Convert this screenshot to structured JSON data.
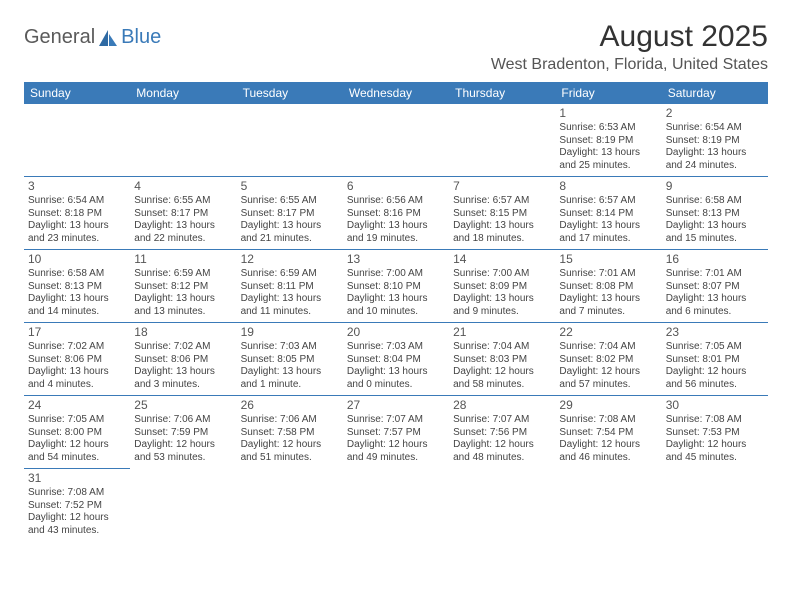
{
  "logo": {
    "part1": "General",
    "part2": "Blue"
  },
  "title": "August 2025",
  "location": "West Bradenton, Florida, United States",
  "colors": {
    "header_bg": "#3a7ab8",
    "header_text": "#ffffff",
    "border": "#3a7ab8",
    "text": "#444444",
    "page_bg": "#ffffff"
  },
  "day_headers": [
    "Sunday",
    "Monday",
    "Tuesday",
    "Wednesday",
    "Thursday",
    "Friday",
    "Saturday"
  ],
  "weeks": [
    [
      null,
      null,
      null,
      null,
      null,
      {
        "n": "1",
        "sunrise": "Sunrise: 6:53 AM",
        "sunset": "Sunset: 8:19 PM",
        "day": "Daylight: 13 hours and 25 minutes."
      },
      {
        "n": "2",
        "sunrise": "Sunrise: 6:54 AM",
        "sunset": "Sunset: 8:19 PM",
        "day": "Daylight: 13 hours and 24 minutes."
      }
    ],
    [
      {
        "n": "3",
        "sunrise": "Sunrise: 6:54 AM",
        "sunset": "Sunset: 8:18 PM",
        "day": "Daylight: 13 hours and 23 minutes."
      },
      {
        "n": "4",
        "sunrise": "Sunrise: 6:55 AM",
        "sunset": "Sunset: 8:17 PM",
        "day": "Daylight: 13 hours and 22 minutes."
      },
      {
        "n": "5",
        "sunrise": "Sunrise: 6:55 AM",
        "sunset": "Sunset: 8:17 PM",
        "day": "Daylight: 13 hours and 21 minutes."
      },
      {
        "n": "6",
        "sunrise": "Sunrise: 6:56 AM",
        "sunset": "Sunset: 8:16 PM",
        "day": "Daylight: 13 hours and 19 minutes."
      },
      {
        "n": "7",
        "sunrise": "Sunrise: 6:57 AM",
        "sunset": "Sunset: 8:15 PM",
        "day": "Daylight: 13 hours and 18 minutes."
      },
      {
        "n": "8",
        "sunrise": "Sunrise: 6:57 AM",
        "sunset": "Sunset: 8:14 PM",
        "day": "Daylight: 13 hours and 17 minutes."
      },
      {
        "n": "9",
        "sunrise": "Sunrise: 6:58 AM",
        "sunset": "Sunset: 8:13 PM",
        "day": "Daylight: 13 hours and 15 minutes."
      }
    ],
    [
      {
        "n": "10",
        "sunrise": "Sunrise: 6:58 AM",
        "sunset": "Sunset: 8:13 PM",
        "day": "Daylight: 13 hours and 14 minutes."
      },
      {
        "n": "11",
        "sunrise": "Sunrise: 6:59 AM",
        "sunset": "Sunset: 8:12 PM",
        "day": "Daylight: 13 hours and 13 minutes."
      },
      {
        "n": "12",
        "sunrise": "Sunrise: 6:59 AM",
        "sunset": "Sunset: 8:11 PM",
        "day": "Daylight: 13 hours and 11 minutes."
      },
      {
        "n": "13",
        "sunrise": "Sunrise: 7:00 AM",
        "sunset": "Sunset: 8:10 PM",
        "day": "Daylight: 13 hours and 10 minutes."
      },
      {
        "n": "14",
        "sunrise": "Sunrise: 7:00 AM",
        "sunset": "Sunset: 8:09 PM",
        "day": "Daylight: 13 hours and 9 minutes."
      },
      {
        "n": "15",
        "sunrise": "Sunrise: 7:01 AM",
        "sunset": "Sunset: 8:08 PM",
        "day": "Daylight: 13 hours and 7 minutes."
      },
      {
        "n": "16",
        "sunrise": "Sunrise: 7:01 AM",
        "sunset": "Sunset: 8:07 PM",
        "day": "Daylight: 13 hours and 6 minutes."
      }
    ],
    [
      {
        "n": "17",
        "sunrise": "Sunrise: 7:02 AM",
        "sunset": "Sunset: 8:06 PM",
        "day": "Daylight: 13 hours and 4 minutes."
      },
      {
        "n": "18",
        "sunrise": "Sunrise: 7:02 AM",
        "sunset": "Sunset: 8:06 PM",
        "day": "Daylight: 13 hours and 3 minutes."
      },
      {
        "n": "19",
        "sunrise": "Sunrise: 7:03 AM",
        "sunset": "Sunset: 8:05 PM",
        "day": "Daylight: 13 hours and 1 minute."
      },
      {
        "n": "20",
        "sunrise": "Sunrise: 7:03 AM",
        "sunset": "Sunset: 8:04 PM",
        "day": "Daylight: 13 hours and 0 minutes."
      },
      {
        "n": "21",
        "sunrise": "Sunrise: 7:04 AM",
        "sunset": "Sunset: 8:03 PM",
        "day": "Daylight: 12 hours and 58 minutes."
      },
      {
        "n": "22",
        "sunrise": "Sunrise: 7:04 AM",
        "sunset": "Sunset: 8:02 PM",
        "day": "Daylight: 12 hours and 57 minutes."
      },
      {
        "n": "23",
        "sunrise": "Sunrise: 7:05 AM",
        "sunset": "Sunset: 8:01 PM",
        "day": "Daylight: 12 hours and 56 minutes."
      }
    ],
    [
      {
        "n": "24",
        "sunrise": "Sunrise: 7:05 AM",
        "sunset": "Sunset: 8:00 PM",
        "day": "Daylight: 12 hours and 54 minutes."
      },
      {
        "n": "25",
        "sunrise": "Sunrise: 7:06 AM",
        "sunset": "Sunset: 7:59 PM",
        "day": "Daylight: 12 hours and 53 minutes."
      },
      {
        "n": "26",
        "sunrise": "Sunrise: 7:06 AM",
        "sunset": "Sunset: 7:58 PM",
        "day": "Daylight: 12 hours and 51 minutes."
      },
      {
        "n": "27",
        "sunrise": "Sunrise: 7:07 AM",
        "sunset": "Sunset: 7:57 PM",
        "day": "Daylight: 12 hours and 49 minutes."
      },
      {
        "n": "28",
        "sunrise": "Sunrise: 7:07 AM",
        "sunset": "Sunset: 7:56 PM",
        "day": "Daylight: 12 hours and 48 minutes."
      },
      {
        "n": "29",
        "sunrise": "Sunrise: 7:08 AM",
        "sunset": "Sunset: 7:54 PM",
        "day": "Daylight: 12 hours and 46 minutes."
      },
      {
        "n": "30",
        "sunrise": "Sunrise: 7:08 AM",
        "sunset": "Sunset: 7:53 PM",
        "day": "Daylight: 12 hours and 45 minutes."
      }
    ],
    [
      {
        "n": "31",
        "sunrise": "Sunrise: 7:08 AM",
        "sunset": "Sunset: 7:52 PM",
        "day": "Daylight: 12 hours and 43 minutes."
      },
      null,
      null,
      null,
      null,
      null,
      null
    ]
  ]
}
